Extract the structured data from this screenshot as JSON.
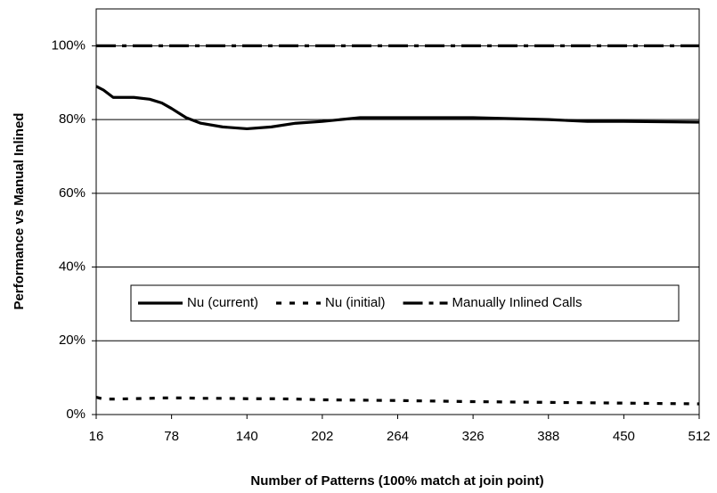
{
  "chart_data": {
    "type": "line",
    "xlabel": "Number of Patterns (100%  match at join point)",
    "ylabel": "Performance vs Manual Inlined",
    "x": [
      16,
      22,
      30,
      47,
      60,
      70,
      78,
      90,
      102,
      120,
      140,
      160,
      180,
      202,
      233,
      264,
      326,
      388,
      420,
      450,
      512
    ],
    "series": [
      {
        "name": "Nu (current)",
        "color": "#000000",
        "dash": "solid",
        "values": [
          89,
          88,
          86,
          86,
          85.5,
          84.5,
          83,
          80.5,
          79,
          78,
          77.5,
          78,
          79,
          79.5,
          80.5,
          80.5,
          80.5,
          80,
          79.5,
          79.5,
          79.3
        ]
      },
      {
        "name": "Nu (initial)",
        "color": "#000000",
        "dash": "dashed",
        "values": [
          4.7,
          4.2,
          4.2,
          4.3,
          4.4,
          4.5,
          4.5,
          4.5,
          4.4,
          4.4,
          4.3,
          4.3,
          4.2,
          4.0,
          3.9,
          3.8,
          3.5,
          3.3,
          3.2,
          3.1,
          2.9
        ]
      },
      {
        "name": "Manually Inlined Calls",
        "color": "#000000",
        "dash": "dashdot",
        "values": [
          100,
          100,
          100,
          100,
          100,
          100,
          100,
          100,
          100,
          100,
          100,
          100,
          100,
          100,
          100,
          100,
          100,
          100,
          100,
          100,
          100
        ]
      }
    ],
    "xlim": [
      16,
      512
    ],
    "xticks": [
      16,
      78,
      140,
      202,
      264,
      326,
      388,
      450,
      512
    ],
    "ylim": [
      0,
      110
    ],
    "yticks": [
      {
        "value": 0,
        "label": "0%"
      },
      {
        "value": 20,
        "label": "20%"
      },
      {
        "value": 40,
        "label": "40%"
      },
      {
        "value": 60,
        "label": "60%"
      },
      {
        "value": 80,
        "label": "80%"
      },
      {
        "value": 100,
        "label": "100%"
      }
    ],
    "grid": true,
    "legend": "center"
  }
}
